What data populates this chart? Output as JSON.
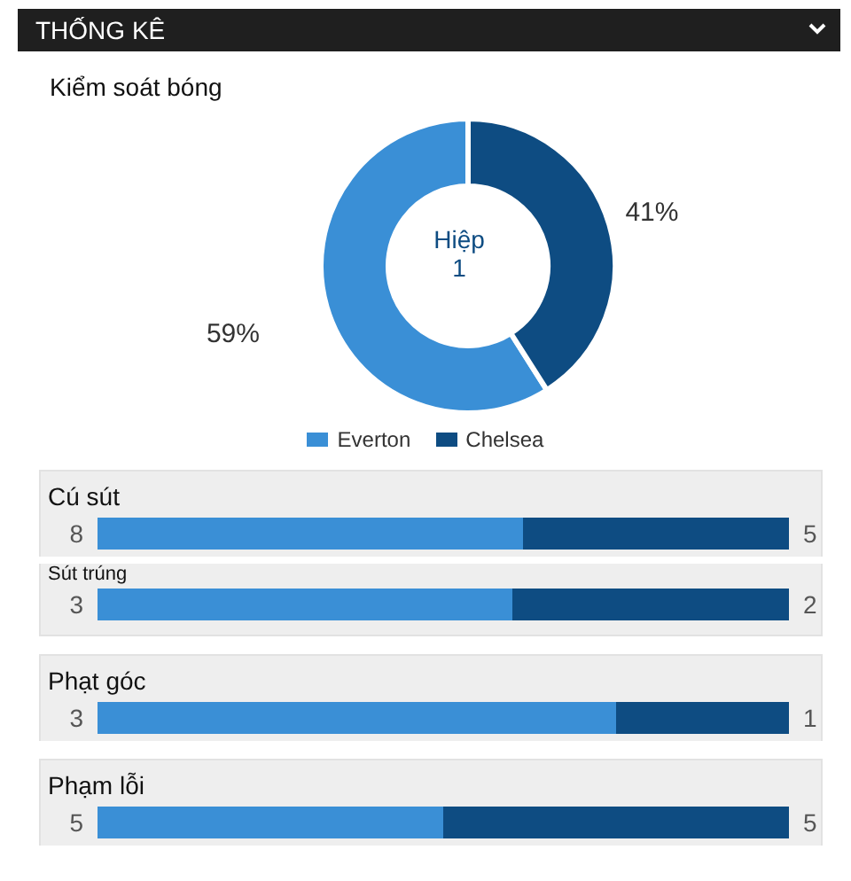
{
  "chart_data": [
    {
      "type": "donut",
      "title": "THỐNG KÊ",
      "subtitle": "Kiểm soát bóng",
      "categories": [
        "Everton",
        "Chelsea"
      ],
      "values": [
        59,
        41
      ],
      "colors": [
        "#3a8fd6",
        "#0e4c82"
      ],
      "value_labels": [
        "59%",
        "41%"
      ],
      "legend": "bottom",
      "annotations": [
        "Hiệp 1"
      ]
    },
    {
      "type": "bar",
      "orientation": "horizontal",
      "stacked": true,
      "title": "Cú sút",
      "categories": [
        null
      ],
      "data_labels": true,
      "series": [
        {
          "color": "#3a8fd6",
          "values": [
            8
          ]
        },
        {
          "color": "#0e4c82",
          "values": [
            5
          ]
        }
      ]
    },
    {
      "type": "bar",
      "orientation": "horizontal",
      "stacked": true,
      "categories": [
        "Sút trúng"
      ],
      "data_labels": true,
      "series": [
        {
          "color": "#3a8fd6",
          "values": [
            3
          ]
        },
        {
          "color": "#0e4c82",
          "values": [
            2
          ]
        }
      ]
    },
    {
      "type": "bar",
      "orientation": "horizontal",
      "stacked": true,
      "title": "Phạt góc",
      "categories": [
        null
      ],
      "data_labels": true,
      "series": [
        {
          "color": "#3a8fd6",
          "values": [
            3
          ]
        },
        {
          "color": "#0e4c82",
          "values": [
            1
          ]
        }
      ]
    },
    {
      "type": "bar",
      "orientation": "horizontal",
      "stacked": true,
      "title": "Phạm lỗi",
      "categories": [
        null
      ],
      "data_labels": true,
      "series": [
        {
          "color": "#3a8fd6",
          "values": [
            5
          ]
        },
        {
          "color": "#0e4c82",
          "values": [
            5
          ]
        }
      ]
    }
  ]
}
